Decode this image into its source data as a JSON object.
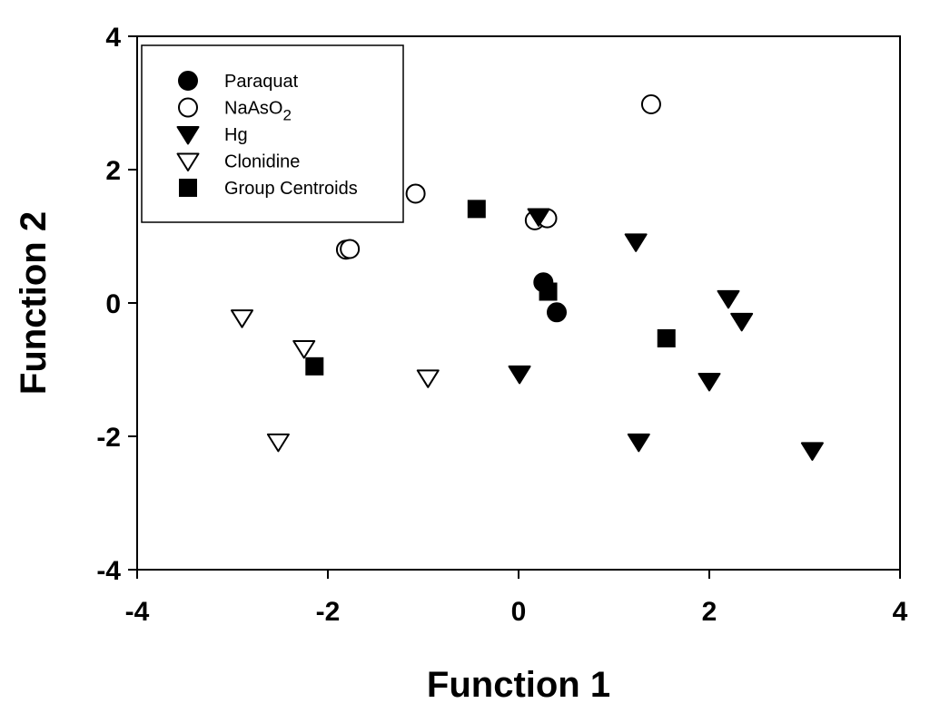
{
  "chart_data": {
    "type": "scatter",
    "xlabel": "Function 1",
    "ylabel": "Function 2",
    "xlim": [
      -4,
      4
    ],
    "ylim": [
      -4,
      4
    ],
    "x_ticks": [
      "-4",
      "-2",
      "0",
      "2",
      "4"
    ],
    "y_ticks": [
      "4",
      "2",
      "0",
      "-2",
      "-4"
    ],
    "grid": false,
    "legend_position": "top-left",
    "series": [
      {
        "name": "Paraquat",
        "marker": "circle-filled",
        "color": "#000000",
        "points": [
          {
            "x": 0.26,
            "y": 0.31
          },
          {
            "x": 0.4,
            "y": -0.14
          }
        ]
      },
      {
        "name": "NaAsO",
        "name_subscript": "2",
        "marker": "circle-open",
        "color": "#000000",
        "points": [
          {
            "x": 1.39,
            "y": 2.98
          },
          {
            "x": -1.08,
            "y": 1.64
          },
          {
            "x": 0.17,
            "y": 1.24
          },
          {
            "x": 0.3,
            "y": 1.27
          },
          {
            "x": -1.81,
            "y": 0.8
          },
          {
            "x": -1.77,
            "y": 0.81
          }
        ]
      },
      {
        "name": "Hg",
        "marker": "triangle-down-filled",
        "color": "#000000",
        "points": [
          {
            "x": 0.21,
            "y": 1.3
          },
          {
            "x": 1.23,
            "y": 0.92
          },
          {
            "x": 2.2,
            "y": 0.07
          },
          {
            "x": 2.34,
            "y": -0.27
          },
          {
            "x": 0.01,
            "y": -1.06
          },
          {
            "x": 2.0,
            "y": -1.17
          },
          {
            "x": 1.26,
            "y": -2.08
          },
          {
            "x": 3.08,
            "y": -2.21
          }
        ]
      },
      {
        "name": "Clonidine",
        "marker": "triangle-down-open",
        "color": "#000000",
        "points": [
          {
            "x": -2.9,
            "y": -0.22
          },
          {
            "x": -2.25,
            "y": -0.68
          },
          {
            "x": -0.95,
            "y": -1.12
          },
          {
            "x": -2.52,
            "y": -2.08
          }
        ]
      },
      {
        "name": "Group Centroids",
        "marker": "square-filled",
        "color": "#000000",
        "points": [
          {
            "x": -0.44,
            "y": 1.41
          },
          {
            "x": 0.31,
            "y": 0.17
          },
          {
            "x": 1.55,
            "y": -0.53
          },
          {
            "x": -2.14,
            "y": -0.95
          }
        ]
      }
    ]
  }
}
